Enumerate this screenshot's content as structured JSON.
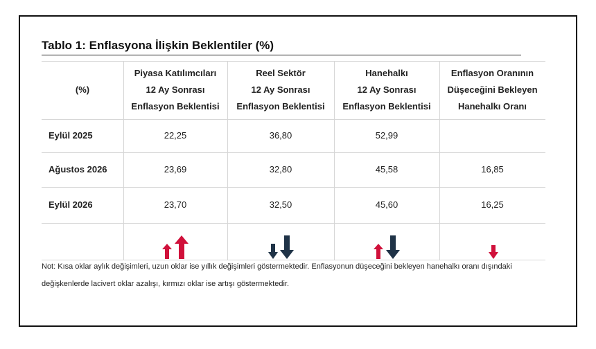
{
  "title": "Tablo 1: Enflasyona İlişkin Beklentiler (%)",
  "table": {
    "header": [
      [
        "(%)"
      ],
      [
        "Piyasa Katılımcıları",
        "12 Ay Sonrası",
        "Enflasyon Beklentisi"
      ],
      [
        "Reel Sektör",
        "12 Ay Sonrası",
        "Enflasyon Beklentisi"
      ],
      [
        "Hanehalkı",
        "12 Ay Sonrası",
        "Enflasyon Beklentisi"
      ],
      [
        "Enflasyon Oranının",
        "Düşeceğini Bekleyen",
        "Hanehalkı Oranı"
      ]
    ],
    "rows": [
      [
        "Eylül 2025",
        "22,25",
        "36,80",
        "52,99",
        null
      ],
      [
        "Ağustos 2026",
        "23,69",
        "32,80",
        "45,58",
        "16,85"
      ],
      [
        "Eylül 2026",
        "23,70",
        "32,50",
        "45,60",
        "16,25"
      ]
    ]
  },
  "note": [
    "Not: Kısa oklar aylık değişimleri, uzun oklar ise yıllık değişimleri göstermektedir. Enflasyonun düşeceğini bekleyen hanehalkı oranı dışındaki",
    "değişkenlerde lacivert oklar azalışı, kırmızı oklar ise artışı göstermektedir."
  ]
}
